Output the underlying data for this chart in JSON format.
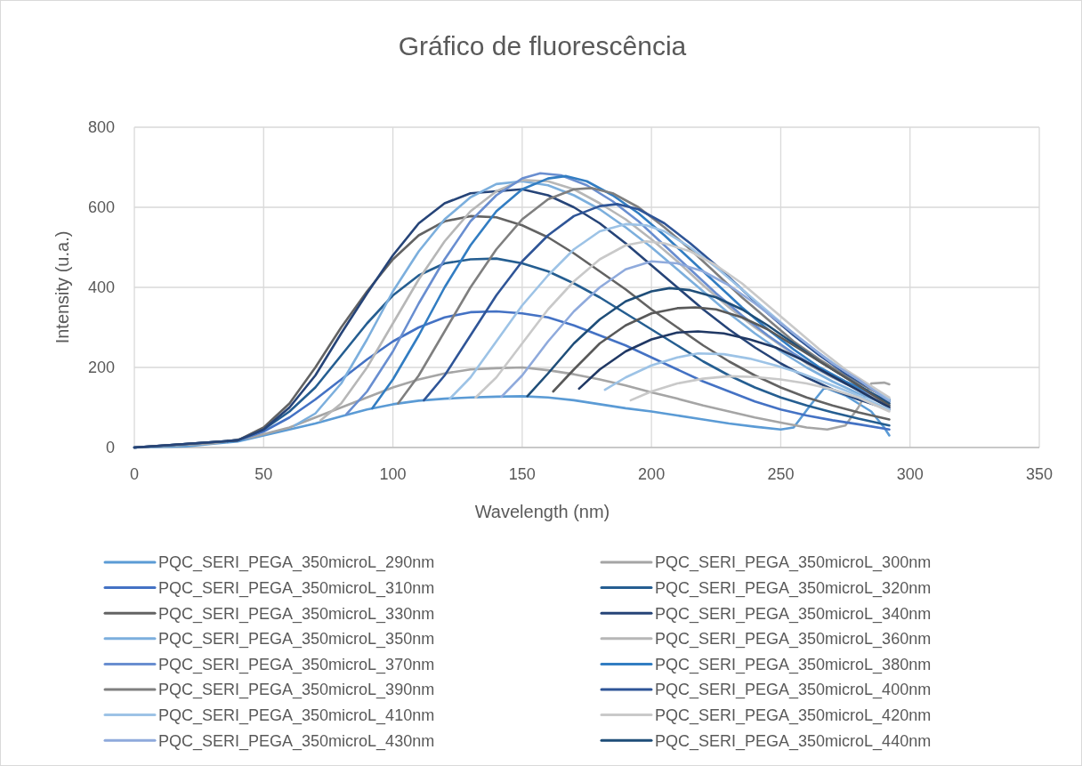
{
  "chart_data": {
    "type": "line",
    "title": "Gráfico de fluorescência",
    "xlabel": "Wavelength (nm)",
    "ylabel": "Intensity (u.a.)",
    "xlim": [
      0,
      350
    ],
    "xticks": [
      0,
      50,
      100,
      150,
      200,
      250,
      300,
      350
    ],
    "ylim": [
      0,
      800
    ],
    "yticks": [
      0,
      200,
      400,
      600,
      800
    ],
    "grid": true,
    "legend": "bottom",
    "marker": "none",
    "line_style": "solid",
    "series": [
      {
        "name": "PQC_SERI_PEGA_350microL_290nm",
        "color": "#5b9bd5",
        "x": [
          0,
          20,
          40,
          50,
          60,
          70,
          80,
          90,
          100,
          110,
          120,
          130,
          140,
          150,
          160,
          170,
          180,
          190,
          200,
          210,
          220,
          230,
          240,
          250,
          255,
          262,
          267,
          275,
          285,
          290,
          292
        ],
        "values": [
          0,
          3,
          15,
          30,
          45,
          60,
          78,
          95,
          108,
          117,
          122,
          125,
          127,
          128,
          125,
          118,
          108,
          98,
          90,
          80,
          70,
          60,
          52,
          45,
          50,
          110,
          150,
          130,
          90,
          50,
          30
        ]
      },
      {
        "name": "PQC_SERI_PEGA_350microL_300nm",
        "color": "#a5a5a5",
        "x": [
          0,
          30,
          45,
          60,
          70,
          80,
          90,
          100,
          110,
          120,
          130,
          140,
          150,
          160,
          170,
          180,
          190,
          200,
          210,
          220,
          230,
          240,
          250,
          260,
          268,
          275,
          280,
          285,
          290,
          292
        ],
        "values": [
          0,
          10,
          25,
          50,
          75,
          100,
          125,
          150,
          170,
          185,
          195,
          198,
          200,
          193,
          183,
          170,
          155,
          138,
          122,
          105,
          90,
          75,
          62,
          50,
          45,
          55,
          100,
          160,
          162,
          158
        ]
      },
      {
        "name": "PQC_SERI_PEGA_350microL_310nm",
        "color": "#4472c4",
        "x": [
          0,
          40,
          50,
          60,
          70,
          80,
          90,
          100,
          110,
          120,
          130,
          140,
          150,
          160,
          170,
          180,
          190,
          200,
          210,
          220,
          230,
          240,
          250,
          260,
          270,
          280,
          292
        ],
        "values": [
          0,
          18,
          40,
          75,
          120,
          170,
          220,
          265,
          300,
          325,
          338,
          340,
          335,
          325,
          305,
          280,
          255,
          225,
          195,
          165,
          140,
          115,
          95,
          80,
          68,
          58,
          45
        ]
      },
      {
        "name": "PQC_SERI_PEGA_350microL_320nm",
        "color": "#255e91",
        "x": [
          0,
          40,
          50,
          60,
          70,
          80,
          90,
          100,
          110,
          120,
          130,
          140,
          150,
          160,
          170,
          180,
          190,
          200,
          210,
          220,
          230,
          240,
          250,
          260,
          270,
          280,
          292
        ],
        "values": [
          0,
          18,
          45,
          90,
          150,
          230,
          310,
          380,
          430,
          460,
          470,
          472,
          460,
          440,
          410,
          375,
          335,
          295,
          255,
          215,
          180,
          150,
          125,
          105,
          88,
          72,
          55
        ]
      },
      {
        "name": "PQC_SERI_PEGA_350microL_330nm",
        "color": "#636363",
        "x": [
          0,
          40,
          50,
          60,
          70,
          80,
          90,
          100,
          110,
          120,
          130,
          140,
          150,
          160,
          170,
          180,
          190,
          200,
          210,
          220,
          230,
          240,
          250,
          260,
          270,
          280,
          292
        ],
        "values": [
          0,
          18,
          50,
          110,
          200,
          300,
          390,
          470,
          530,
          565,
          578,
          575,
          555,
          525,
          485,
          440,
          395,
          345,
          300,
          255,
          215,
          180,
          150,
          125,
          105,
          88,
          70
        ]
      },
      {
        "name": "PQC_SERI_PEGA_350microL_340nm",
        "color": "#264478",
        "x": [
          0,
          40,
          50,
          60,
          70,
          80,
          90,
          100,
          110,
          120,
          130,
          140,
          150,
          160,
          170,
          180,
          190,
          200,
          210,
          220,
          230,
          240,
          250,
          260,
          270,
          280,
          292
        ],
        "values": [
          0,
          18,
          45,
          100,
          180,
          285,
          385,
          480,
          560,
          610,
          635,
          640,
          645,
          630,
          600,
          560,
          510,
          455,
          400,
          345,
          295,
          250,
          210,
          175,
          145,
          120,
          95
        ]
      },
      {
        "name": "PQC_SERI_PEGA_350microL_350nm",
        "color": "#7cafdd",
        "x": [
          62,
          70,
          80,
          90,
          100,
          110,
          120,
          130,
          140,
          150,
          160,
          170,
          180,
          190,
          200,
          210,
          220,
          230,
          240,
          250,
          260,
          270,
          280,
          292
        ],
        "values": [
          55,
          85,
          160,
          270,
          390,
          490,
          570,
          625,
          658,
          665,
          655,
          630,
          595,
          550,
          500,
          445,
          390,
          335,
          285,
          240,
          200,
          165,
          135,
          105
        ]
      },
      {
        "name": "PQC_SERI_PEGA_350microL_360nm",
        "color": "#b7b7b7",
        "x": [
          72,
          80,
          90,
          100,
          110,
          120,
          130,
          140,
          150,
          160,
          170,
          180,
          190,
          200,
          210,
          220,
          230,
          240,
          250,
          260,
          270,
          280,
          292
        ],
        "values": [
          68,
          110,
          200,
          310,
          420,
          515,
          590,
          640,
          668,
          665,
          645,
          610,
          570,
          520,
          465,
          405,
          350,
          300,
          255,
          210,
          175,
          145,
          110
        ]
      },
      {
        "name": "PQC_SERI_PEGA_350microL_370nm",
        "color": "#698ed0",
        "x": [
          82,
          90,
          100,
          110,
          120,
          130,
          140,
          150,
          157,
          165,
          175,
          185,
          195,
          205,
          215,
          225,
          235,
          245,
          255,
          265,
          275,
          292
        ],
        "values": [
          83,
          140,
          240,
          360,
          470,
          565,
          630,
          672,
          685,
          680,
          655,
          615,
          565,
          505,
          445,
          385,
          330,
          280,
          235,
          195,
          160,
          115
        ]
      },
      {
        "name": "PQC_SERI_PEGA_350microL_380nm",
        "color": "#327dc2",
        "x": [
          92,
          100,
          110,
          120,
          130,
          140,
          150,
          160,
          167,
          175,
          185,
          195,
          205,
          215,
          225,
          235,
          245,
          255,
          265,
          275,
          292
        ],
        "values": [
          98,
          170,
          280,
          400,
          505,
          590,
          645,
          672,
          678,
          665,
          630,
          585,
          530,
          470,
          410,
          350,
          295,
          245,
          200,
          165,
          115
        ]
      },
      {
        "name": "PQC_SERI_PEGA_350microL_390nm",
        "color": "#7f7f7f",
        "x": [
          102,
          110,
          120,
          130,
          140,
          150,
          160,
          170,
          177,
          185,
          195,
          205,
          215,
          225,
          235,
          245,
          255,
          265,
          275,
          292
        ],
        "values": [
          110,
          180,
          290,
          400,
          495,
          570,
          620,
          645,
          648,
          635,
          600,
          550,
          495,
          435,
          375,
          320,
          265,
          220,
          180,
          120
        ]
      },
      {
        "name": "PQC_SERI_PEGA_350microL_400nm",
        "color": "#2f5597",
        "x": [
          112,
          120,
          130,
          140,
          150,
          160,
          170,
          180,
          187,
          195,
          205,
          215,
          225,
          235,
          245,
          255,
          265,
          275,
          292
        ],
        "values": [
          118,
          180,
          280,
          380,
          465,
          530,
          578,
          603,
          608,
          595,
          560,
          510,
          455,
          395,
          335,
          280,
          230,
          185,
          120
        ]
      },
      {
        "name": "PQC_SERI_PEGA_350microL_410nm",
        "color": "#9dc3e6",
        "x": [
          122,
          130,
          140,
          150,
          160,
          170,
          180,
          190,
          198,
          205,
          215,
          225,
          235,
          245,
          255,
          265,
          275,
          292
        ],
        "values": [
          122,
          175,
          265,
          355,
          430,
          495,
          540,
          558,
          555,
          540,
          500,
          450,
          395,
          340,
          285,
          235,
          190,
          120
        ]
      },
      {
        "name": "PQC_SERI_PEGA_350microL_420nm",
        "color": "#c9c9c9",
        "x": [
          132,
          140,
          150,
          160,
          170,
          180,
          190,
          198,
          205,
          215,
          225,
          235,
          245,
          255,
          265,
          275,
          292
        ],
        "values": [
          125,
          175,
          260,
          345,
          415,
          470,
          505,
          515,
          510,
          490,
          455,
          410,
          355,
          300,
          245,
          195,
          125
        ]
      },
      {
        "name": "PQC_SERI_PEGA_350microL_430nm",
        "color": "#8faadc",
        "x": [
          142,
          150,
          160,
          170,
          180,
          190,
          200,
          210,
          220,
          230,
          240,
          250,
          260,
          270,
          280,
          292
        ],
        "values": [
          127,
          180,
          265,
          340,
          400,
          445,
          465,
          460,
          440,
          405,
          360,
          310,
          260,
          210,
          170,
          115
        ]
      },
      {
        "name": "PQC_SERI_PEGA_350microL_440nm",
        "color": "#1f4e79",
        "x": [
          152,
          160,
          170,
          180,
          190,
          200,
          207,
          215,
          225,
          235,
          245,
          255,
          265,
          275,
          292
        ],
        "values": [
          128,
          185,
          260,
          320,
          365,
          390,
          398,
          393,
          375,
          345,
          305,
          260,
          215,
          175,
          110
        ]
      },
      {
        "color": "#595959",
        "x": [
          162,
          170,
          180,
          190,
          200,
          210,
          217,
          225,
          235,
          245,
          255,
          265,
          275,
          292
        ],
        "values": [
          140,
          195,
          260,
          305,
          335,
          348,
          350,
          345,
          325,
          295,
          255,
          215,
          175,
          105
        ]
      },
      {
        "color": "#203864",
        "x": [
          172,
          180,
          190,
          200,
          210,
          218,
          228,
          238,
          248,
          258,
          268,
          278,
          292
        ],
        "values": [
          147,
          195,
          240,
          270,
          287,
          290,
          285,
          270,
          250,
          220,
          185,
          150,
          100
        ]
      },
      {
        "color": "#9dc3e6",
        "x": [
          182,
          190,
          200,
          210,
          218,
          228,
          238,
          248,
          258,
          268,
          278,
          292
        ],
        "values": [
          144,
          175,
          205,
          225,
          235,
          233,
          222,
          205,
          185,
          160,
          135,
          95
        ]
      },
      {
        "color": "#c9c9c9",
        "x": [
          192,
          200,
          210,
          220,
          230,
          240,
          250,
          260,
          270,
          280,
          292
        ],
        "values": [
          118,
          140,
          160,
          172,
          178,
          176,
          170,
          160,
          145,
          125,
          90
        ]
      }
    ]
  }
}
